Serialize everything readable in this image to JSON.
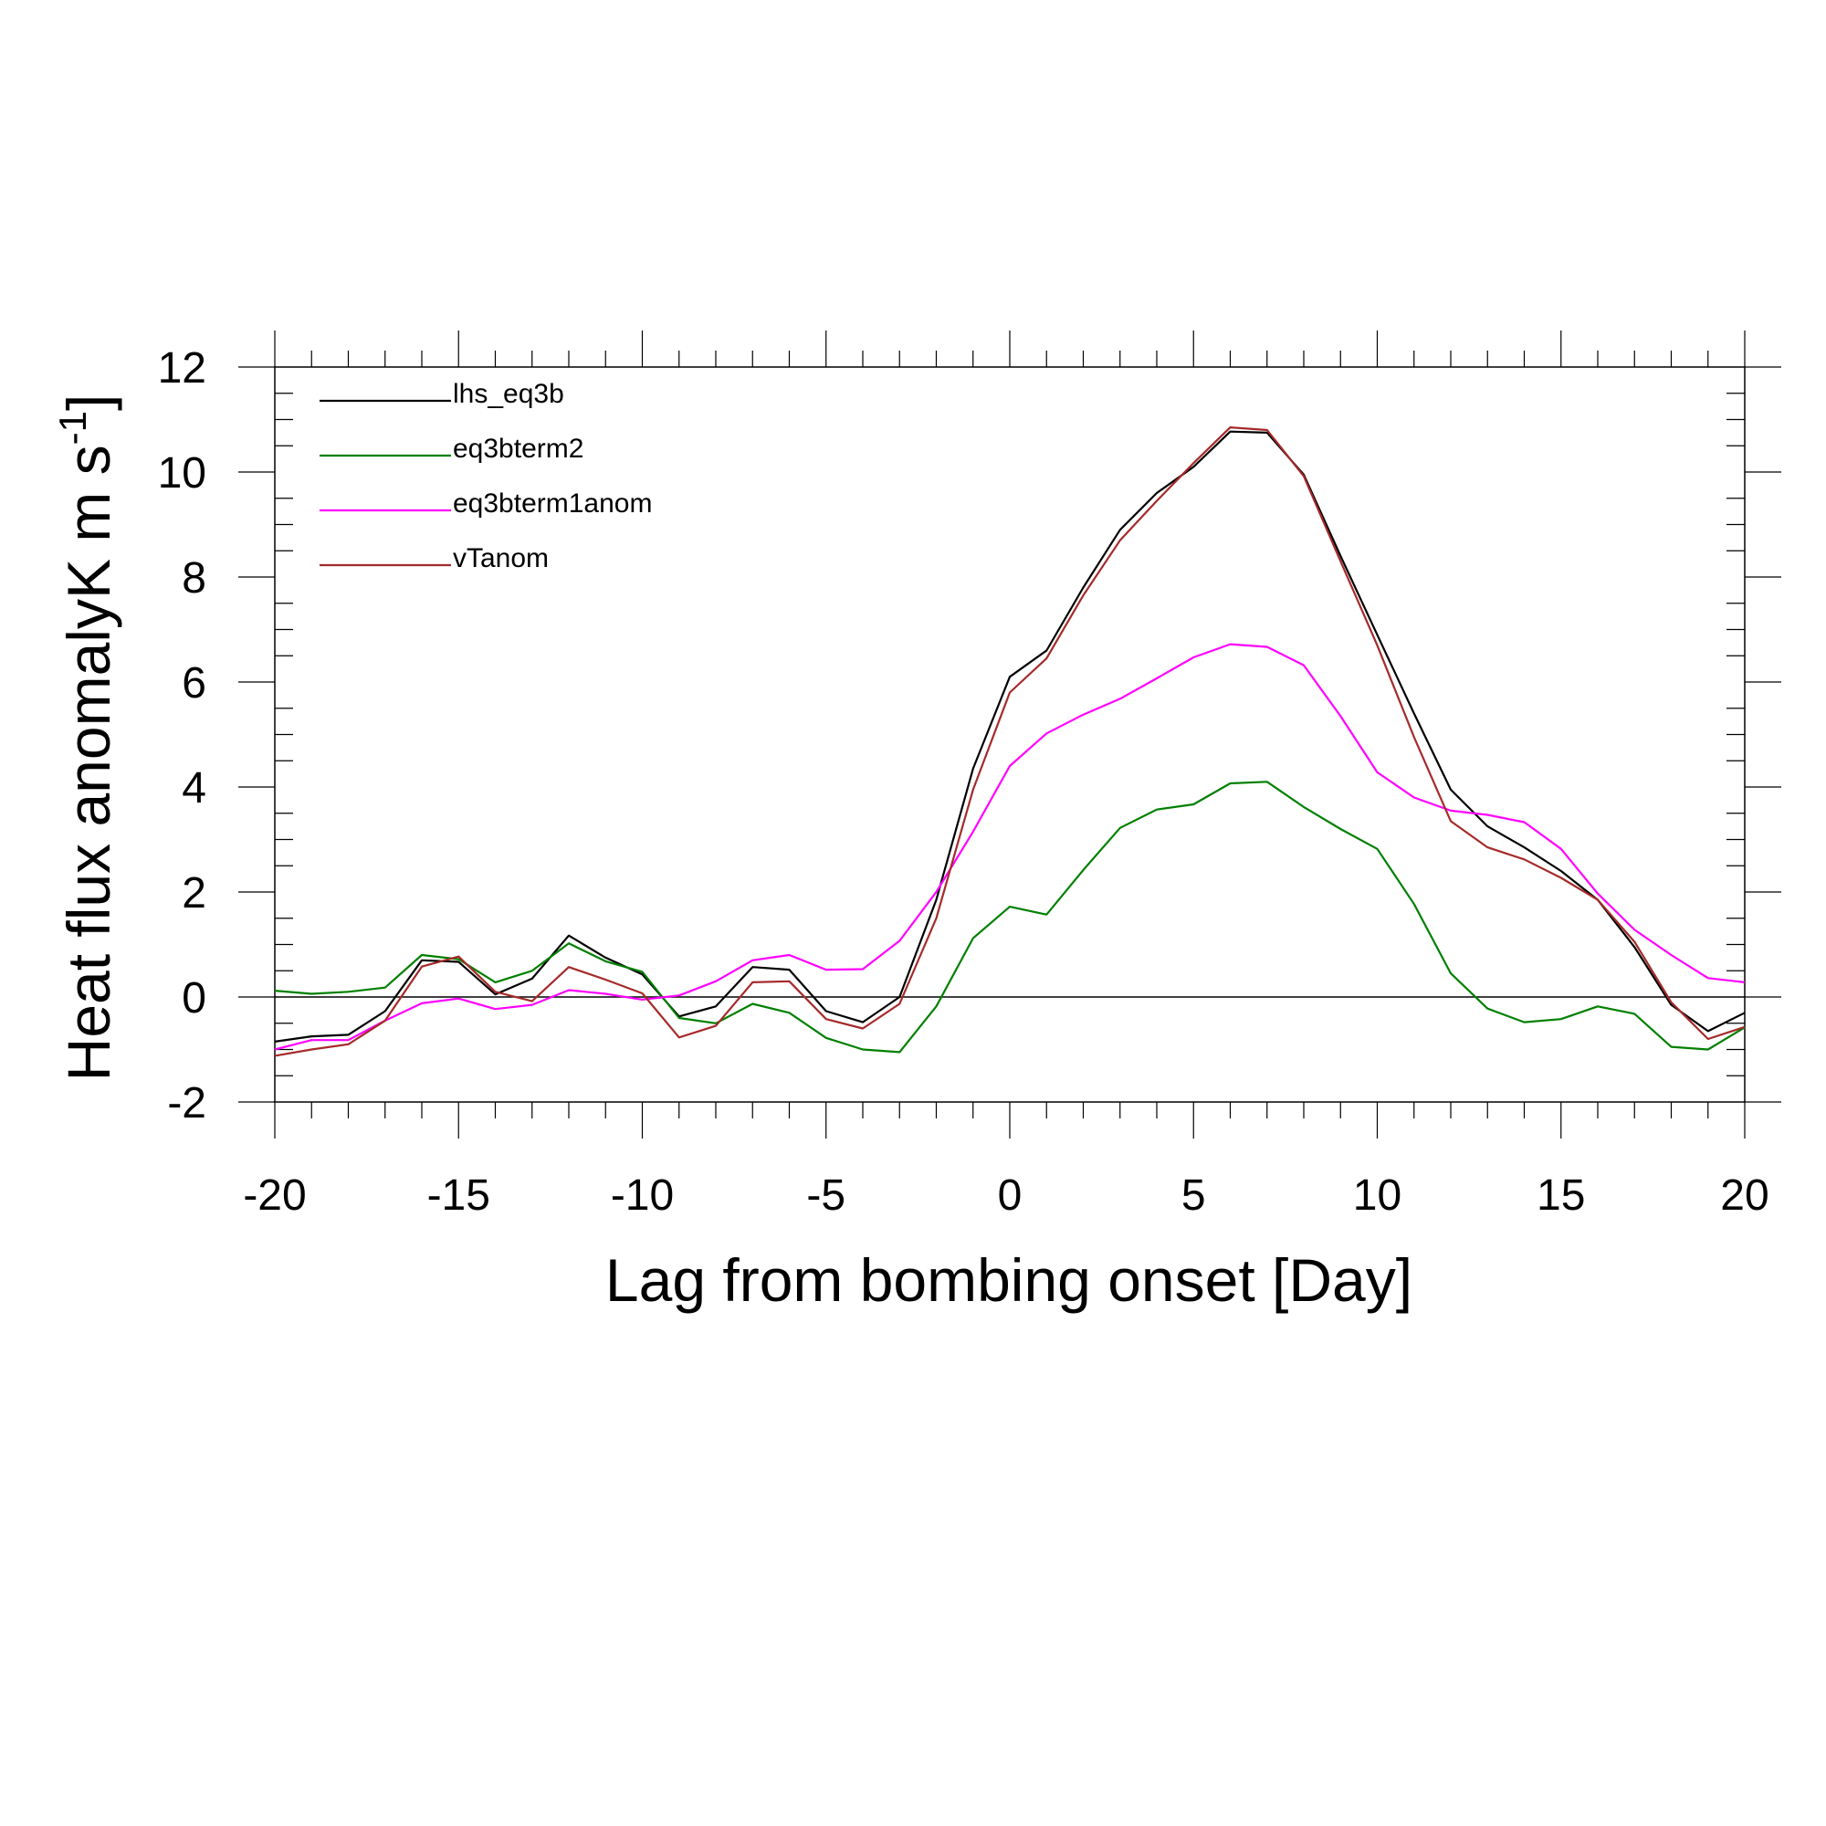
{
  "chart_data": {
    "type": "line",
    "xlabel": "Lag from bombing onset [Day]",
    "ylabel": "Heat flux anomalyK m s",
    "ylabel_superscript": "-1",
    "ylabel_close": "]",
    "xlim": [
      -20,
      20
    ],
    "ylim": [
      -2,
      12
    ],
    "xticks": [
      -20,
      -15,
      -10,
      -5,
      0,
      5,
      10,
      15,
      20
    ],
    "xtick_labels": [
      "-20",
      "-15",
      "-10",
      "-5",
      "0",
      "5",
      "10",
      "15",
      "20"
    ],
    "yticks": [
      -2,
      0,
      2,
      4,
      6,
      8,
      10,
      12
    ],
    "ytick_labels": [
      "-2",
      "0",
      "2",
      "4",
      "6",
      "8",
      "10",
      "12"
    ],
    "zero_line": true,
    "grid": false,
    "legend_position": "top-left",
    "x": [
      -20,
      -19,
      -18,
      -17,
      -16,
      -15,
      -14,
      -13,
      -12,
      -11,
      -10,
      -9,
      -8,
      -7,
      -6,
      -5,
      -4,
      -3,
      -2,
      -1,
      0,
      1,
      2,
      3,
      4,
      5,
      6,
      7,
      8,
      9,
      10,
      11,
      12,
      13,
      14,
      15,
      16,
      17,
      18,
      19,
      20
    ],
    "series": [
      {
        "name": "lhs_eq3b",
        "color": "#000000",
        "values": [
          -0.85,
          -0.75,
          -0.72,
          -0.27,
          0.7,
          0.67,
          0.05,
          0.35,
          1.17,
          0.75,
          0.43,
          -0.37,
          -0.18,
          0.57,
          0.52,
          -0.27,
          -0.48,
          0.0,
          1.85,
          4.35,
          6.1,
          6.6,
          7.8,
          8.9,
          9.6,
          10.1,
          10.77,
          10.75,
          9.95,
          8.4,
          6.9,
          5.4,
          3.95,
          3.25,
          2.85,
          2.4,
          1.85,
          0.95,
          -0.15,
          -0.65,
          -0.3
        ]
      },
      {
        "name": "eq3bterm2",
        "color": "#008000",
        "values": [
          0.12,
          0.06,
          0.1,
          0.18,
          0.8,
          0.72,
          0.28,
          0.5,
          1.02,
          0.68,
          0.48,
          -0.4,
          -0.5,
          -0.13,
          -0.3,
          -0.78,
          -1.0,
          -1.05,
          -0.18,
          1.12,
          1.72,
          1.57,
          2.42,
          3.22,
          3.57,
          3.67,
          4.07,
          4.1,
          3.62,
          3.2,
          2.82,
          1.77,
          0.45,
          -0.22,
          -0.48,
          -0.42,
          -0.18,
          -0.32,
          -0.95,
          -1.0,
          -0.58
        ]
      },
      {
        "name": "eq3bterm1anom",
        "color": "#ff00ff",
        "values": [
          -1.0,
          -0.82,
          -0.82,
          -0.45,
          -0.12,
          -0.03,
          -0.23,
          -0.15,
          0.13,
          0.06,
          -0.05,
          0.03,
          0.3,
          0.7,
          0.8,
          0.52,
          0.53,
          1.07,
          2.0,
          3.15,
          4.4,
          5.02,
          5.38,
          5.68,
          6.07,
          6.47,
          6.72,
          6.67,
          6.32,
          5.35,
          4.28,
          3.8,
          3.55,
          3.47,
          3.33,
          2.82,
          1.97,
          1.28,
          0.8,
          0.36,
          0.28
        ]
      },
      {
        "name": "vTanom",
        "color": "#a52a2a",
        "values": [
          -1.12,
          -1.0,
          -0.9,
          -0.45,
          0.58,
          0.77,
          0.1,
          -0.08,
          0.57,
          0.33,
          0.07,
          -0.77,
          -0.55,
          0.28,
          0.3,
          -0.42,
          -0.6,
          -0.13,
          1.5,
          3.95,
          5.8,
          6.45,
          7.65,
          8.7,
          9.45,
          10.17,
          10.85,
          10.8,
          9.92,
          8.3,
          6.7,
          4.95,
          3.35,
          2.85,
          2.62,
          2.27,
          1.85,
          1.05,
          -0.1,
          -0.8,
          -0.57
        ]
      }
    ]
  }
}
